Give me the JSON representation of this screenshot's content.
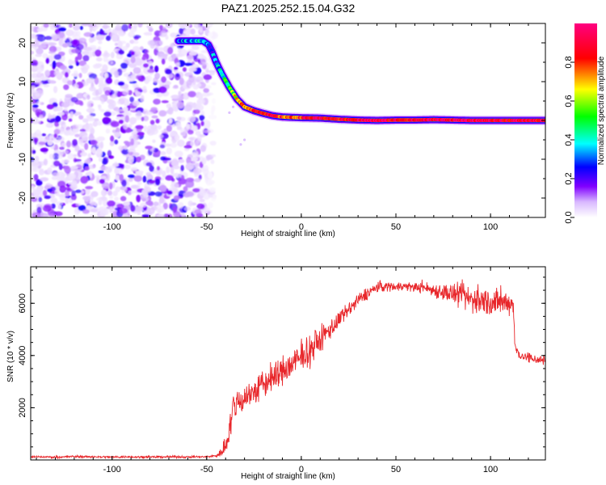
{
  "page": {
    "title": "PAZ1.2025.252.15.04.G32"
  },
  "chart_data": [
    {
      "type": "heatmap",
      "title": "PAZ1.2025.252.15.04.G32",
      "xlabel": "Height of straight line (km)",
      "ylabel": "Frequency (Hz)",
      "xlim": [
        -143,
        129
      ],
      "ylim": [
        -25,
        25
      ],
      "xticks": [
        {
          "value": -100,
          "label": "-100"
        },
        {
          "value": -50,
          "label": "-50"
        },
        {
          "value": 0,
          "label": "0"
        },
        {
          "value": 50,
          "label": "50"
        },
        {
          "value": 100,
          "label": "100"
        }
      ],
      "yticks": [
        {
          "value": 20,
          "label": "20"
        },
        {
          "value": 10,
          "label": "10"
        },
        {
          "value": 0,
          "label": "0"
        },
        {
          "value": -10,
          "label": "-10"
        },
        {
          "value": -20,
          "label": "-20"
        }
      ],
      "noise_region": {
        "x_range": [
          -143,
          -46
        ],
        "freq_range": [
          -25,
          25
        ],
        "amplitude_range": [
          0.05,
          0.25
        ]
      },
      "ridge": {
        "x": [
          -65,
          -58,
          -52,
          -49,
          -47,
          -45,
          -42,
          -38,
          -34,
          -30,
          -25,
          -20,
          -15,
          -10,
          -5,
          0,
          10,
          20,
          30,
          40,
          50,
          60,
          70,
          80,
          90,
          100,
          110,
          120,
          129
        ],
        "frequency": [
          20.5,
          20.5,
          20.5,
          19.5,
          17.5,
          15.0,
          12.0,
          8.5,
          5.5,
          3.5,
          2.5,
          1.8,
          1.2,
          0.9,
          0.8,
          0.7,
          0.6,
          0.3,
          0.1,
          0.0,
          0.1,
          0.1,
          0.2,
          0.1,
          0.0,
          0.0,
          0.0,
          0.0,
          0.0
        ],
        "amplitude": [
          0.3,
          0.35,
          0.35,
          0.28,
          0.3,
          0.32,
          0.42,
          0.55,
          0.65,
          0.75,
          0.85,
          0.9,
          0.85,
          0.8,
          0.75,
          0.85,
          0.9,
          0.85,
          0.92,
          0.95,
          0.88,
          0.9,
          0.92,
          0.95,
          0.95,
          0.93,
          0.9,
          0.92,
          0.88
        ]
      },
      "colorbar": {
        "label": "Normalized spectral amplitude",
        "range": [
          0,
          1
        ],
        "ticks": [
          {
            "value": 0,
            "label": "0.0"
          },
          {
            "value": 0.2,
            "label": "0.2"
          },
          {
            "value": 0.4,
            "label": "0.4"
          },
          {
            "value": 0.6,
            "label": "0.6"
          },
          {
            "value": 0.8,
            "label": "0.8"
          }
        ],
        "colormap": [
          "#ffffff",
          "#8000ff",
          "#0000ff",
          "#00ffff",
          "#00ff00",
          "#ffff00",
          "#ff0000",
          "#ff0080"
        ]
      }
    },
    {
      "type": "line",
      "xlabel": "Height of straight line (km)",
      "ylabel": "SNR (10 * v/v)",
      "xlim": [
        -143,
        129
      ],
      "ylim": [
        0,
        7400
      ],
      "xticks": [
        {
          "value": -100,
          "label": "-100"
        },
        {
          "value": -50,
          "label": "-50"
        },
        {
          "value": 0,
          "label": "0"
        },
        {
          "value": 50,
          "label": "50"
        },
        {
          "value": 100,
          "label": "100"
        }
      ],
      "yticks": [
        {
          "value": 2000,
          "label": "2000"
        },
        {
          "value": 4000,
          "label": "4000"
        },
        {
          "value": 6000,
          "label": "6000"
        }
      ],
      "color": "#e8262a",
      "series": [
        {
          "name": "SNR",
          "x": [
            -143,
            -130,
            -120,
            -110,
            -100,
            -90,
            -80,
            -70,
            -60,
            -50,
            -45,
            -42,
            -40,
            -38,
            -36,
            -34,
            -30,
            -25,
            -20,
            -15,
            -10,
            -5,
            0,
            5,
            10,
            15,
            20,
            25,
            30,
            35,
            40,
            45,
            50,
            55,
            60,
            65,
            70,
            75,
            80,
            85,
            90,
            95,
            100,
            105,
            110,
            112,
            113,
            115,
            118,
            120,
            125,
            129
          ],
          "y": [
            120,
            110,
            130,
            120,
            110,
            120,
            110,
            120,
            115,
            120,
            160,
            300,
            600,
            1200,
            1900,
            2200,
            2400,
            2600,
            2900,
            3150,
            3400,
            3650,
            3900,
            4250,
            4600,
            5000,
            5350,
            5750,
            6100,
            6400,
            6600,
            6650,
            6650,
            6650,
            6620,
            6600,
            6500,
            6450,
            6350,
            6250,
            6150,
            6100,
            6050,
            6000,
            6050,
            6000,
            4300,
            4050,
            3950,
            3900,
            3850,
            3800
          ],
          "noise_amplitude": [
            30,
            30,
            30,
            30,
            30,
            30,
            30,
            30,
            30,
            30,
            40,
            150,
            300,
            400,
            450,
            450,
            400,
            420,
            420,
            420,
            440,
            440,
            450,
            420,
            400,
            300,
            250,
            200,
            200,
            180,
            160,
            140,
            130,
            130,
            140,
            150,
            200,
            250,
            300,
            350,
            400,
            420,
            420,
            380,
            320,
            300,
            150,
            150,
            150,
            150,
            150,
            150
          ]
        }
      ]
    }
  ]
}
